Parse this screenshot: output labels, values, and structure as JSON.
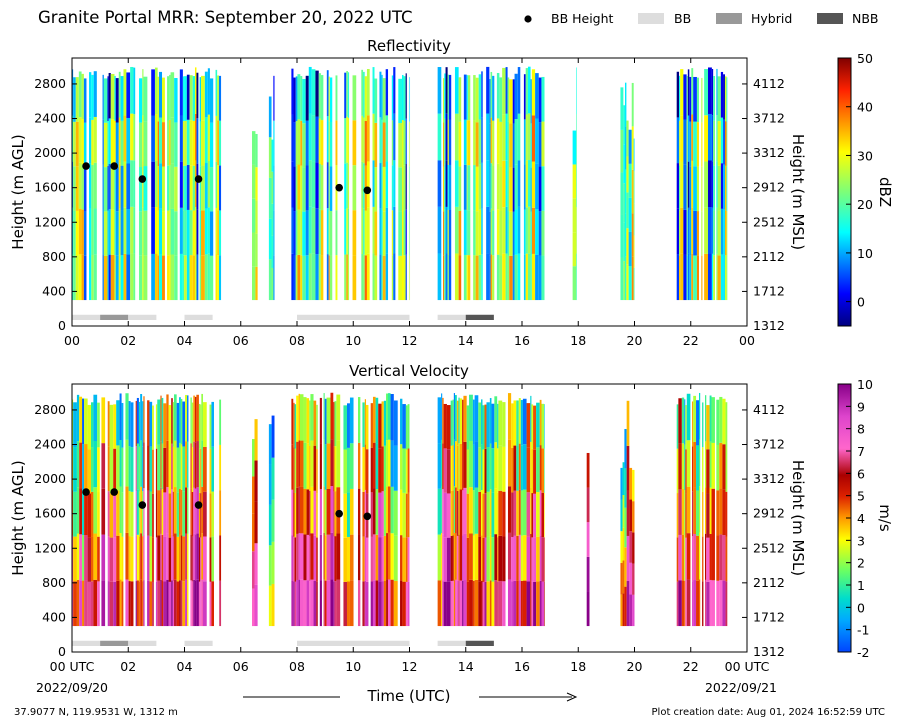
{
  "header": {
    "title": "Granite Portal MRR:  September 20, 2022 UTC",
    "legend": [
      {
        "label": "BB Height",
        "kind": "dot",
        "color": "#000000"
      },
      {
        "label": "BB",
        "kind": "box",
        "color": "#dddddd"
      },
      {
        "label": "Hybrid",
        "kind": "box",
        "color": "#999999"
      },
      {
        "label": "NBB",
        "kind": "box",
        "color": "#555555"
      }
    ]
  },
  "footer": {
    "location": "37.9077 N, 119.9531 W, 1312 m",
    "created": "Plot creation date: Aug 01, 2024 16:52:59 UTC",
    "xlabel": "Time (UTC)",
    "start_date": "2022/09/20",
    "end_date": "2022/09/21"
  },
  "chart_data": [
    {
      "type": "heatmap",
      "title": "Reflectivity",
      "xlabel": "Time (UTC)",
      "ylabel": "Height (m AGL)",
      "ylabel_right": "Height (m MSL)",
      "xlim": [
        0,
        24
      ],
      "ylim": [
        0,
        3100
      ],
      "x_ticks": [
        "00",
        "02",
        "04",
        "06",
        "08",
        "10",
        "12",
        "14",
        "16",
        "18",
        "20",
        "22",
        "00"
      ],
      "y_ticks": [
        0,
        400,
        800,
        1200,
        1600,
        2000,
        2400,
        2800
      ],
      "y_ticks_right": [
        1312,
        1712,
        2112,
        2512,
        2912,
        3312,
        3712,
        4112
      ],
      "colorbar": {
        "label": "dBZ",
        "min": -5,
        "max": 50,
        "ticks": [
          0,
          10,
          20,
          30,
          40,
          50
        ],
        "colormap": "jet"
      },
      "echo_periods": [
        [
          0,
          5.3
        ],
        [
          6.4,
          6.6
        ],
        [
          7.0,
          7.2
        ],
        [
          7.8,
          12.0
        ],
        [
          13.0,
          16.8
        ],
        [
          17.8,
          17.95
        ],
        [
          19.5,
          20.0
        ],
        [
          21.5,
          23.3
        ]
      ],
      "bright_band_height": [
        {
          "time": 0.5,
          "height": 1850
        },
        {
          "time": 1.5,
          "height": 1850
        },
        {
          "time": 2.5,
          "height": 1700
        },
        {
          "time": 4.5,
          "height": 1700
        },
        {
          "time": 9.5,
          "height": 1600
        },
        {
          "time": 10.5,
          "height": 1570
        }
      ],
      "bright_band_type": [
        {
          "start": 0.0,
          "end": 1.0,
          "type": "BB"
        },
        {
          "start": 1.0,
          "end": 2.0,
          "type": "Hybrid"
        },
        {
          "start": 2.0,
          "end": 3.0,
          "type": "BB"
        },
        {
          "start": 4.0,
          "end": 5.0,
          "type": "BB"
        },
        {
          "start": 8.0,
          "end": 12.0,
          "type": "BB"
        },
        {
          "start": 13.0,
          "end": 14.0,
          "type": "BB"
        },
        {
          "start": 14.0,
          "end": 15.0,
          "type": "NBB"
        }
      ]
    },
    {
      "type": "heatmap",
      "title": "Vertical Velocity",
      "xlabel": "Time (UTC)",
      "ylabel": "Height (m AGL)",
      "ylabel_right": "Height (m MSL)",
      "xlim": [
        0,
        24
      ],
      "ylim": [
        0,
        3100
      ],
      "x_ticks": [
        "00 UTC",
        "02",
        "04",
        "06",
        "08",
        "10",
        "12",
        "14",
        "16",
        "18",
        "20",
        "22",
        "00 UTC"
      ],
      "y_ticks": [
        0,
        400,
        800,
        1200,
        1600,
        2000,
        2400,
        2800
      ],
      "y_ticks_right": [
        1312,
        1712,
        2112,
        2512,
        2912,
        3312,
        3712,
        4112
      ],
      "colorbar": {
        "label": "m/s",
        "min": -2,
        "max": 10,
        "ticks": [
          -2,
          -1,
          0,
          1,
          2,
          3,
          4,
          5,
          6,
          7,
          8,
          9,
          10
        ],
        "colormap": "velocity"
      },
      "echo_periods": [
        [
          0,
          5.3
        ],
        [
          6.4,
          6.6
        ],
        [
          7.0,
          7.2
        ],
        [
          7.8,
          12.0
        ],
        [
          13.0,
          16.8
        ],
        [
          18.3,
          18.4
        ],
        [
          19.5,
          20.0
        ],
        [
          21.5,
          23.3
        ]
      ],
      "bright_band_height": [
        {
          "time": 0.5,
          "height": 1850
        },
        {
          "time": 1.5,
          "height": 1850
        },
        {
          "time": 2.5,
          "height": 1700
        },
        {
          "time": 4.5,
          "height": 1700
        },
        {
          "time": 9.5,
          "height": 1600
        },
        {
          "time": 10.5,
          "height": 1570
        }
      ],
      "bright_band_type": [
        {
          "start": 0.0,
          "end": 1.0,
          "type": "BB"
        },
        {
          "start": 1.0,
          "end": 2.0,
          "type": "Hybrid"
        },
        {
          "start": 2.0,
          "end": 3.0,
          "type": "BB"
        },
        {
          "start": 4.0,
          "end": 5.0,
          "type": "BB"
        },
        {
          "start": 8.0,
          "end": 12.0,
          "type": "BB"
        },
        {
          "start": 13.0,
          "end": 14.0,
          "type": "BB"
        },
        {
          "start": 14.0,
          "end": 15.0,
          "type": "NBB"
        }
      ]
    }
  ]
}
